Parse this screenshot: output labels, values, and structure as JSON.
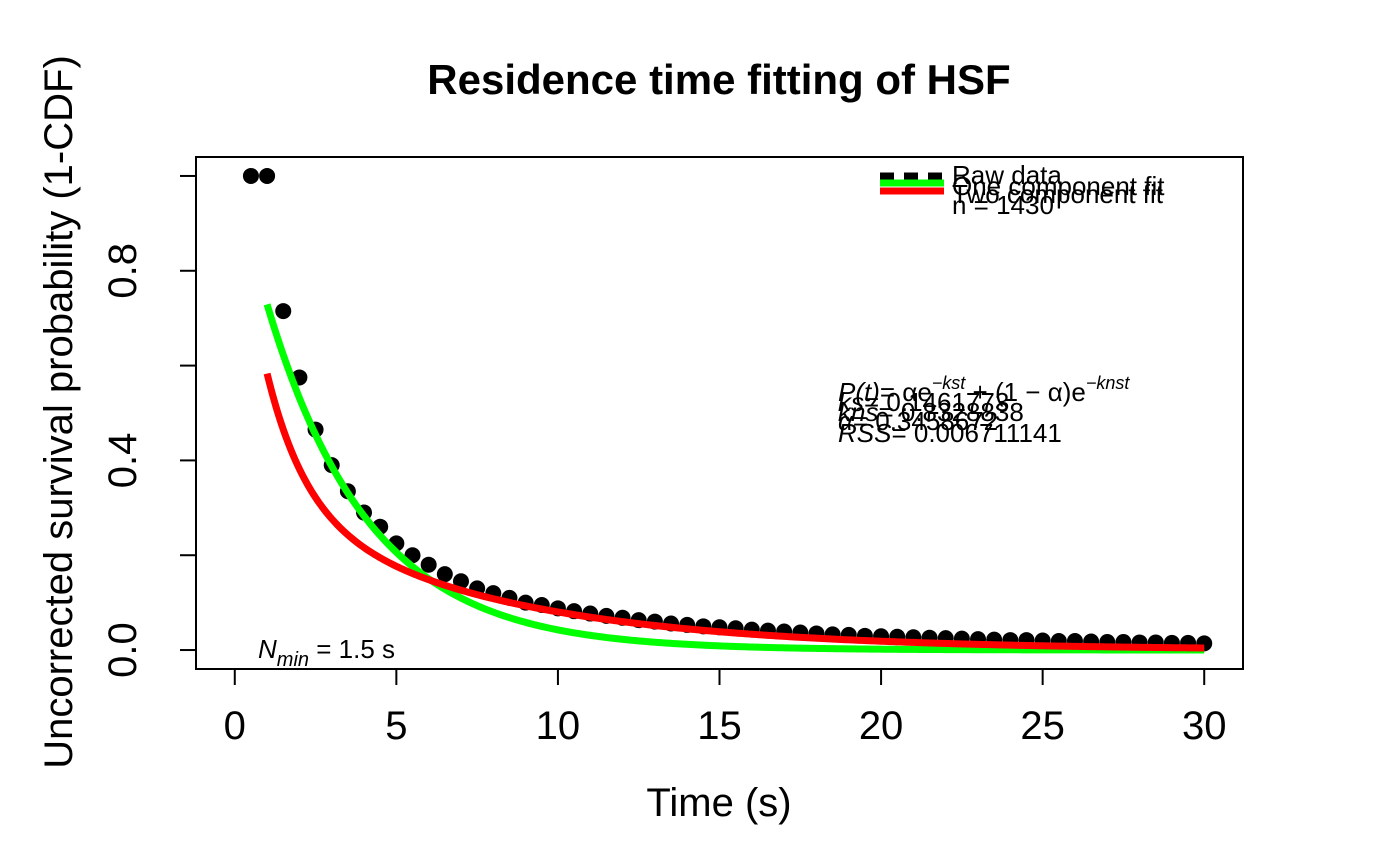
{
  "chart_data": {
    "type": "scatter",
    "title": "Residence time fitting of HSF",
    "xlabel": "Time (s)",
    "ylabel": "Uncorrected survival probability (1-CDF)",
    "xlim": [
      -1.2,
      31.2
    ],
    "ylim": [
      -0.04,
      1.04
    ],
    "x_ticks": [
      "0",
      "5",
      "10",
      "15",
      "20",
      "25",
      "30"
    ],
    "x_tick_values": [
      0,
      5,
      10,
      15,
      20,
      25,
      30
    ],
    "y_ticks": [
      "0.0",
      "0.4",
      "0.8"
    ],
    "y_tick_values": [
      0.0,
      0.4,
      0.8
    ],
    "y_minor_tick_values": [
      0.0,
      0.2,
      0.4,
      0.6,
      0.8,
      1.0
    ],
    "grid": false,
    "legend_position": "top-right",
    "legend": [
      {
        "label": "Raw data",
        "style": "dashed",
        "color": "#000000"
      },
      {
        "label": "One component fit",
        "style": "solid",
        "color": "#00ff00"
      },
      {
        "label": "Two component fit",
        "style": "solid",
        "color": "#ff0000"
      },
      {
        "label": "n = 1430",
        "style": "none",
        "color": ""
      }
    ],
    "series": [
      {
        "name": "Raw data",
        "kind": "points",
        "color": "#000000",
        "x": [
          0.5,
          1.0,
          1.5,
          2.0,
          2.5,
          3.0,
          3.5,
          4.0,
          4.5,
          5.0,
          5.5,
          6.0,
          6.5,
          7.0,
          7.5,
          8.0,
          8.5,
          9.0,
          9.5,
          10.0,
          10.5,
          11.0,
          11.5,
          12.0,
          12.5,
          13.0,
          13.5,
          14.0,
          14.5,
          15.0,
          15.5,
          16.0,
          16.5,
          17.0,
          17.5,
          18.0,
          18.5,
          19.0,
          19.5,
          20.0,
          20.5,
          21.0,
          21.5,
          22.0,
          22.5,
          23.0,
          23.5,
          24.0,
          24.5,
          25.0,
          25.5,
          26.0,
          26.5,
          27.0,
          27.5,
          28.0,
          28.5,
          29.0,
          29.5,
          30.0
        ],
        "y": [
          1.0,
          1.0,
          0.715,
          0.575,
          0.465,
          0.39,
          0.335,
          0.29,
          0.26,
          0.225,
          0.2,
          0.18,
          0.16,
          0.145,
          0.13,
          0.12,
          0.11,
          0.1,
          0.095,
          0.088,
          0.082,
          0.077,
          0.072,
          0.068,
          0.063,
          0.06,
          0.056,
          0.053,
          0.05,
          0.048,
          0.046,
          0.043,
          0.041,
          0.039,
          0.037,
          0.035,
          0.033,
          0.032,
          0.03,
          0.029,
          0.028,
          0.027,
          0.026,
          0.025,
          0.024,
          0.023,
          0.022,
          0.021,
          0.021,
          0.02,
          0.019,
          0.019,
          0.018,
          0.017,
          0.017,
          0.016,
          0.016,
          0.015,
          0.015,
          0.014
        ]
      },
      {
        "name": "One component fit",
        "kind": "curve",
        "model": "exp1",
        "color": "#00ff00",
        "k": 0.3158,
        "x_start": 1.0,
        "x_end": 30.0
      },
      {
        "name": "Two component fit",
        "kind": "curve",
        "model": "exp2",
        "color": "#ff0000",
        "k_s": 0.1461773,
        "k_ns": 0.8328838,
        "alpha": 0.3458672,
        "x_start": 1.0,
        "x_end": 30.0
      }
    ],
    "annotations": {
      "equation_lhs": "P(t)",
      "equation_rhs": "= αe",
      "equation_exp": "−kst",
      "equation_mid": " + (1 − α)e",
      "equation_exp2": "−knst",
      "ks_label": "ks",
      "ks_value": "= 0.1461773",
      "kns_label": "kns",
      "kns_value": "= 0.8328838",
      "alpha_label": "α",
      "alpha_value": "= 0.3458672",
      "rss_label": "RSS",
      "rss_value": "= 0.006711141",
      "nmin_label": "N",
      "nmin_sub": "min",
      "nmin_value": " = 1.5 s"
    }
  }
}
